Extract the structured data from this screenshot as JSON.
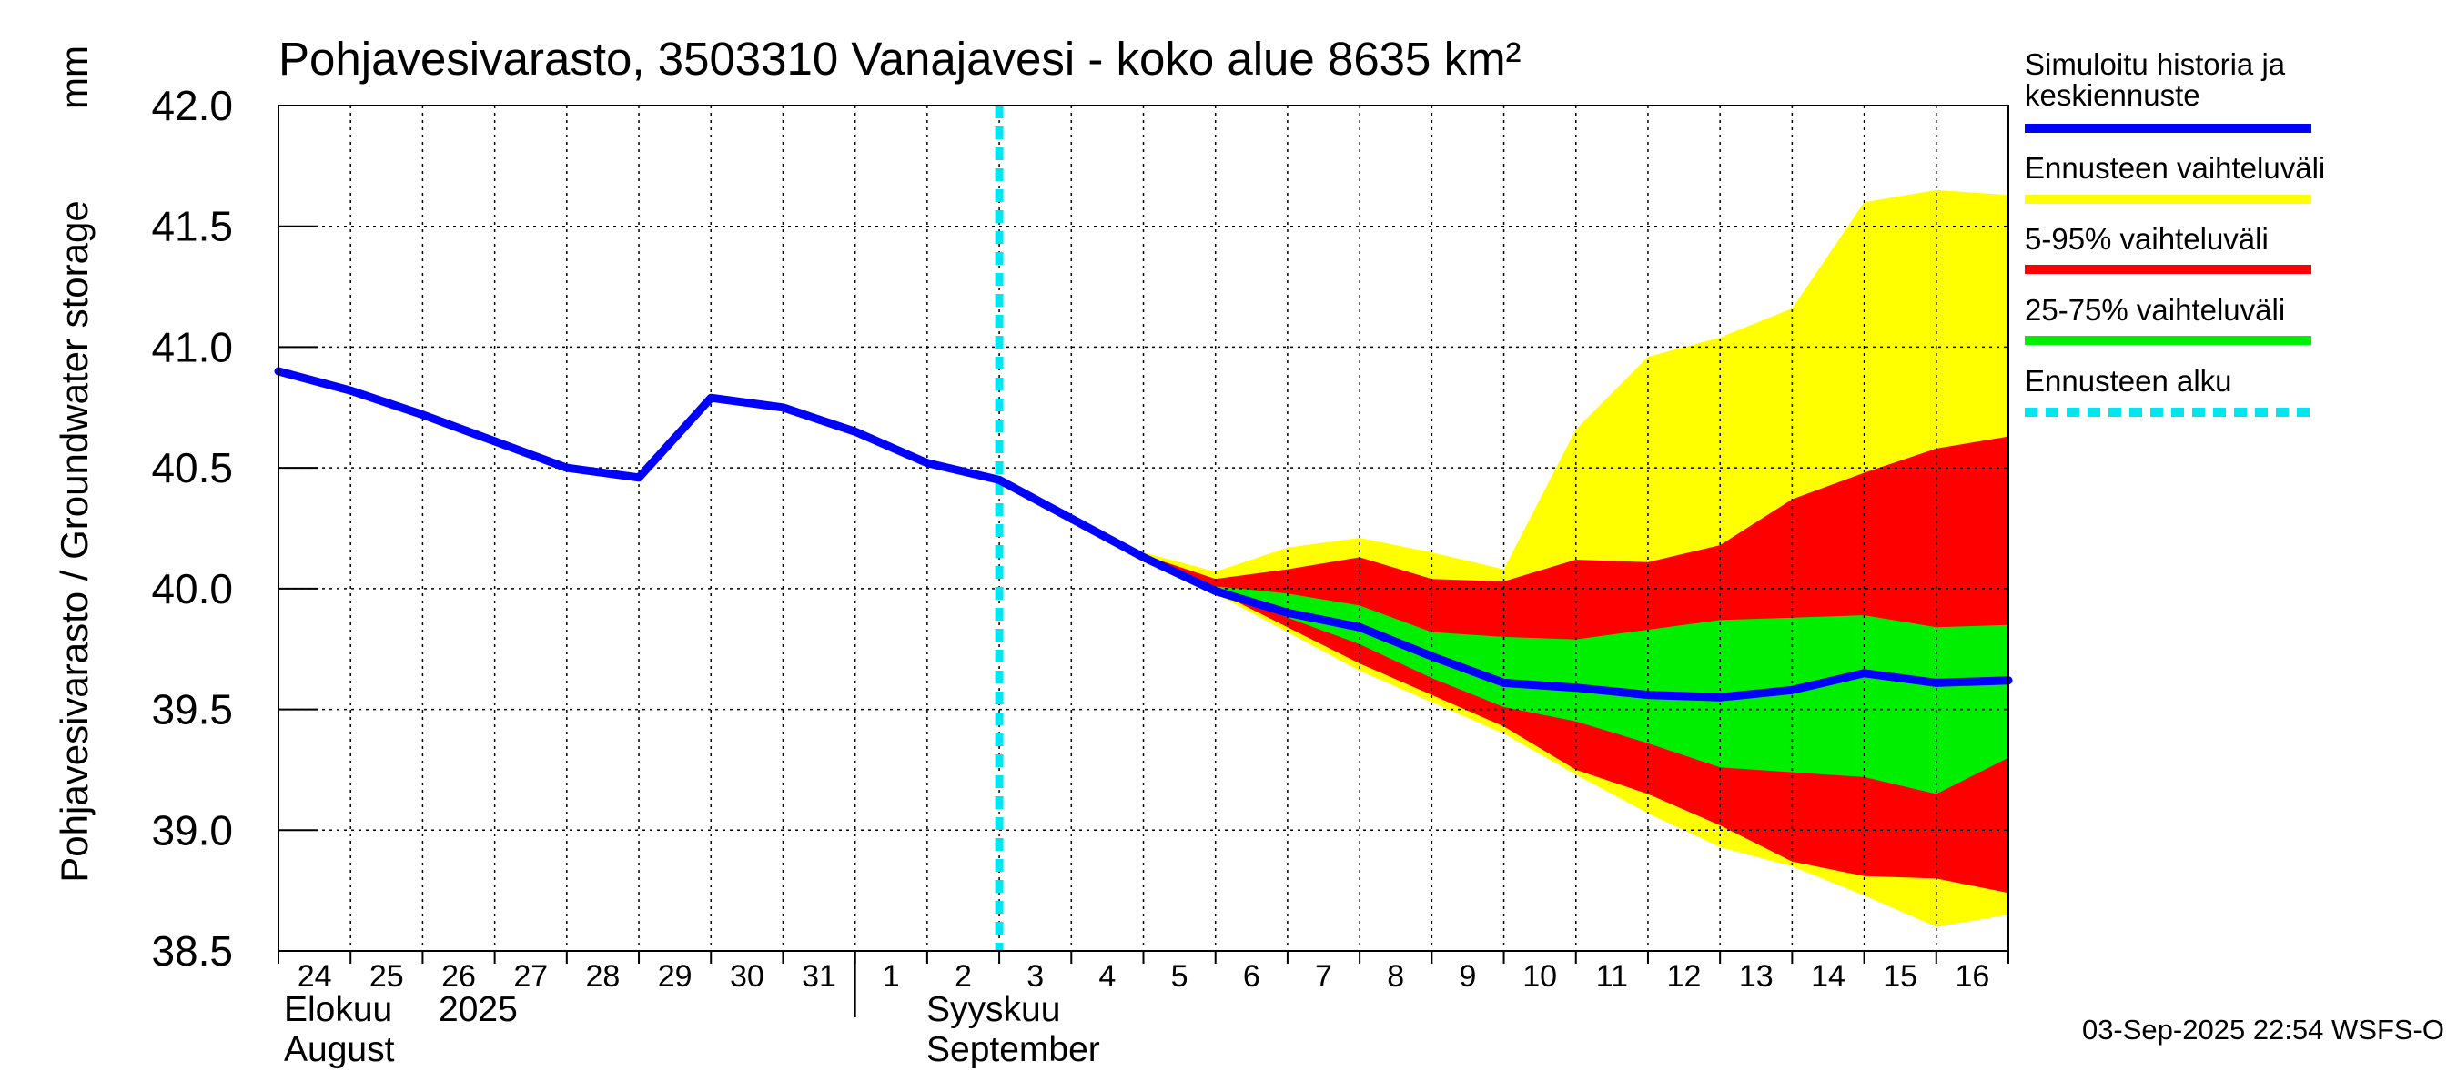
{
  "chart_data": {
    "type": "area",
    "title": "Pohjavesivarasto, 3503310 Vanajavesi - koko alue 8635 km²",
    "ylabel": "Pohjavesivarasto / Groundwater storage",
    "yunit": "mm",
    "ylim": [
      38.5,
      42.0
    ],
    "yticks": [
      "38.5",
      "39.0",
      "39.5",
      "40.0",
      "40.5",
      "41.0",
      "41.5",
      "42.0"
    ],
    "xlim": [
      0,
      24
    ],
    "day_labels": [
      "24",
      "25",
      "26",
      "27",
      "28",
      "29",
      "30",
      "31",
      "1",
      "2",
      "3",
      "4",
      "5",
      "6",
      "7",
      "8",
      "9",
      "10",
      "11",
      "12",
      "13",
      "14",
      "15",
      "16"
    ],
    "month_labels": {
      "august_fi": "Elokuu",
      "year": "2025",
      "august_en": "August",
      "september_fi": "Syyskuu",
      "september_en": "September"
    },
    "forecast_start_x": 10,
    "grid": true,
    "legend_position": "right",
    "legend": [
      {
        "label": "Simuloitu historia ja keskiennuste",
        "color": "#0000ff",
        "style": "solid"
      },
      {
        "label": "Ennusteen vaihteluväli",
        "color": "#ffff00",
        "style": "solid"
      },
      {
        "label": "5-95% vaihteluväli",
        "color": "#ff0000",
        "style": "solid"
      },
      {
        "label": "25-75% vaihteluväli",
        "color": "#00ee00",
        "style": "solid"
      },
      {
        "label": "Ennusteen alku",
        "color": "#00e5ee",
        "style": "dashed"
      }
    ],
    "series": [
      {
        "name": "Simuloitu historia ja keskiennuste",
        "color": "#0000ff",
        "x": [
          0,
          1,
          2,
          3,
          4,
          5,
          6,
          7,
          8,
          9,
          10,
          11,
          12,
          13,
          14,
          15,
          16,
          17,
          18,
          19,
          20,
          21,
          22,
          23,
          24
        ],
        "y": [
          40.9,
          40.82,
          40.72,
          40.61,
          40.5,
          40.46,
          40.79,
          40.75,
          40.65,
          40.52,
          40.45,
          40.29,
          40.13,
          39.99,
          39.9,
          39.84,
          39.72,
          39.61,
          39.59,
          39.56,
          39.55,
          39.58,
          39.65,
          39.61,
          39.62
        ]
      }
    ],
    "bands": [
      {
        "name": "Ennusteen vaihteluväli",
        "color": "#ffff00",
        "x": [
          10,
          11,
          12,
          13,
          14,
          15,
          16,
          17,
          18,
          19,
          20,
          21,
          22,
          23,
          24
        ],
        "upper": [
          40.45,
          40.29,
          40.15,
          40.07,
          40.17,
          40.21,
          40.15,
          40.08,
          40.66,
          40.96,
          41.04,
          41.16,
          41.6,
          41.65,
          41.63
        ],
        "lower": [
          40.45,
          40.29,
          40.12,
          39.98,
          39.82,
          39.66,
          39.53,
          39.4,
          39.23,
          39.07,
          38.93,
          38.85,
          38.73,
          38.6,
          38.65
        ]
      },
      {
        "name": "5-95% vaihteluväli",
        "color": "#ff0000",
        "x": [
          10,
          11,
          12,
          13,
          14,
          15,
          16,
          17,
          18,
          19,
          20,
          21,
          22,
          23,
          24
        ],
        "upper": [
          40.45,
          40.29,
          40.14,
          40.04,
          40.08,
          40.13,
          40.04,
          40.03,
          40.12,
          40.11,
          40.18,
          40.37,
          40.48,
          40.58,
          40.63
        ],
        "lower": [
          40.45,
          40.29,
          40.12,
          39.99,
          39.84,
          39.69,
          39.56,
          39.43,
          39.25,
          39.15,
          39.02,
          38.87,
          38.81,
          38.8,
          38.74
        ]
      },
      {
        "name": "25-75% vaihteluväli",
        "color": "#00ee00",
        "x": [
          10,
          11,
          12,
          13,
          14,
          15,
          16,
          17,
          18,
          19,
          20,
          21,
          22,
          23,
          24
        ],
        "upper": [
          40.45,
          40.29,
          40.13,
          40.01,
          39.98,
          39.93,
          39.82,
          39.8,
          39.79,
          39.83,
          39.87,
          39.88,
          39.89,
          39.84,
          39.85
        ],
        "lower": [
          40.45,
          40.29,
          40.13,
          40.0,
          39.88,
          39.77,
          39.63,
          39.51,
          39.45,
          39.36,
          39.26,
          39.24,
          39.22,
          39.15,
          39.3
        ]
      }
    ],
    "footer": "03-Sep-2025 22:54 WSFS-O"
  }
}
